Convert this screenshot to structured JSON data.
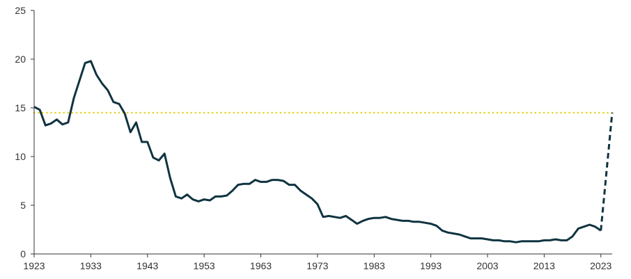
{
  "colors": {
    "series": "#0f3340",
    "reference": "#e8d21e",
    "axis": "#333333",
    "background": "#ffffff"
  },
  "chart_data": {
    "type": "line",
    "title": "",
    "xlabel": "",
    "ylabel": "",
    "xlim": [
      1923,
      2025
    ],
    "ylim": [
      0,
      25
    ],
    "grid": false,
    "legend": "none",
    "x_ticks": [
      "1923",
      "1933",
      "1943",
      "1953",
      "1963",
      "1973",
      "1983",
      "1993",
      "2003",
      "2013",
      "2023"
    ],
    "y_ticks": [
      "0",
      "5",
      "10",
      "15",
      "20",
      "25"
    ],
    "series": [
      {
        "style": "solid",
        "x": [
          1923,
          1924,
          1925,
          1926,
          1927,
          1928,
          1929,
          1930,
          1931,
          1932,
          1933,
          1934,
          1935,
          1936,
          1937,
          1938,
          1939,
          1940,
          1941,
          1942,
          1943,
          1944,
          1945,
          1946,
          1947,
          1948,
          1949,
          1950,
          1951,
          1952,
          1953,
          1954,
          1955,
          1956,
          1957,
          1958,
          1959,
          1960,
          1961,
          1962,
          1963,
          1964,
          1965,
          1966,
          1967,
          1968,
          1969,
          1970,
          1971,
          1972,
          1973,
          1974,
          1975,
          1976,
          1977,
          1978,
          1979,
          1980,
          1981,
          1982,
          1983,
          1984,
          1985,
          1986,
          1987,
          1988,
          1989,
          1990,
          1991,
          1992,
          1993,
          1994,
          1995,
          1996,
          1997,
          1998,
          1999,
          2000,
          2001,
          2002,
          2003,
          2004,
          2005,
          2006,
          2007,
          2008,
          2009,
          2010,
          2011,
          2012,
          2013,
          2014,
          2015,
          2016,
          2017,
          2018,
          2019,
          2020,
          2021,
          2022,
          2023
        ],
        "values": [
          15.1,
          14.8,
          13.2,
          13.4,
          13.8,
          13.3,
          13.5,
          16.0,
          17.8,
          19.6,
          19.8,
          18.4,
          17.5,
          16.8,
          15.6,
          15.4,
          14.4,
          12.5,
          13.5,
          11.5,
          11.5,
          9.9,
          9.6,
          10.3,
          7.8,
          5.9,
          5.7,
          6.1,
          5.6,
          5.4,
          5.6,
          5.5,
          5.9,
          5.9,
          6.0,
          6.5,
          7.1,
          7.2,
          7.2,
          7.6,
          7.4,
          7.4,
          7.6,
          7.6,
          7.5,
          7.1,
          7.1,
          6.5,
          6.1,
          5.7,
          5.1,
          3.8,
          3.9,
          3.8,
          3.7,
          3.9,
          3.5,
          3.1,
          3.4,
          3.6,
          3.7,
          3.7,
          3.8,
          3.6,
          3.5,
          3.4,
          3.4,
          3.3,
          3.3,
          3.2,
          3.1,
          2.9,
          2.4,
          2.2,
          2.1,
          2.0,
          1.8,
          1.6,
          1.6,
          1.6,
          1.5,
          1.4,
          1.4,
          1.3,
          1.3,
          1.2,
          1.3,
          1.3,
          1.3,
          1.3,
          1.4,
          1.4,
          1.5,
          1.4,
          1.4,
          1.8,
          2.6,
          2.8,
          3.0,
          2.8,
          2.4
        ]
      },
      {
        "style": "dashed",
        "x": [
          2023,
          2025
        ],
        "values": [
          2.4,
          14.5
        ]
      }
    ],
    "reference_line": {
      "y": 14.5,
      "style": "dotted"
    }
  }
}
